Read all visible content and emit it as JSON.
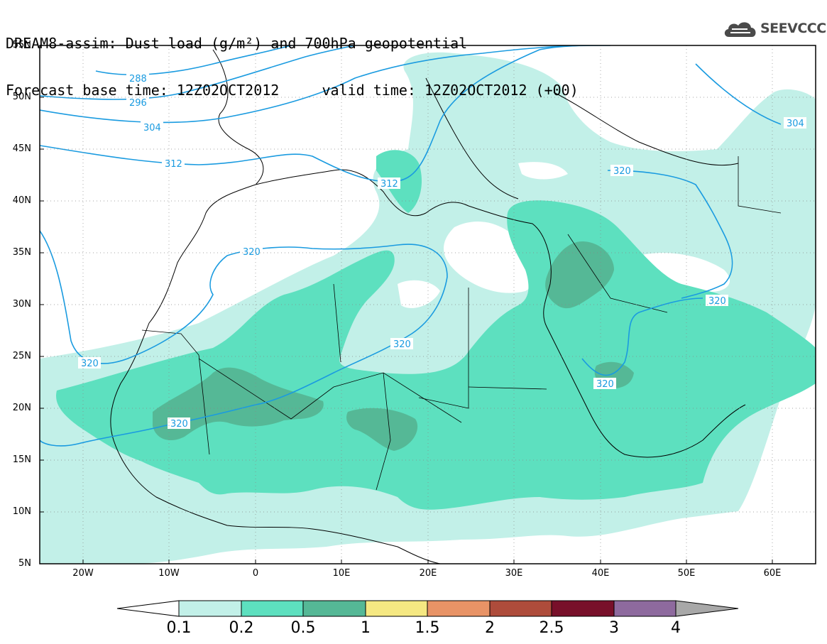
{
  "header": {
    "line1": "DREAM8-assim: Dust load (g/m²) and 700hPa geopotential",
    "line2": "Forecast base time: 12Z02OCT2012     valid time: 12Z02OCT2012 (+00)"
  },
  "logo": {
    "text": "SEEVCCC",
    "icon": "cloud-icon"
  },
  "map": {
    "lat_labels": [
      "55N",
      "50N",
      "45N",
      "40N",
      "35N",
      "30N",
      "25N",
      "20N",
      "15N",
      "10N",
      "5N"
    ],
    "lon_labels": [
      "20W",
      "10W",
      "0",
      "10E",
      "20E",
      "30E",
      "40E",
      "50E",
      "60E"
    ],
    "contour_labels": [
      "288",
      "296",
      "304",
      "312",
      "312",
      "320",
      "320",
      "320",
      "320",
      "320",
      "320",
      "320",
      "304"
    ]
  },
  "colorbar": {
    "levels": [
      "0.1",
      "0.2",
      "0.5",
      "1",
      "1.5",
      "2",
      "2.5",
      "3",
      "4"
    ],
    "colors": [
      "#ffffff",
      "#c2f0e8",
      "#5de0bf",
      "#55b896",
      "#f5e882",
      "#e89366",
      "#ae4c3b",
      "#78102a",
      "#8e6a9e",
      "#a8a8a8"
    ]
  },
  "fill_colors": {
    "light": "#c2f0e8",
    "medium": "#5de0bf",
    "dark": "#55b896"
  },
  "contour_color": "#1a9be0"
}
